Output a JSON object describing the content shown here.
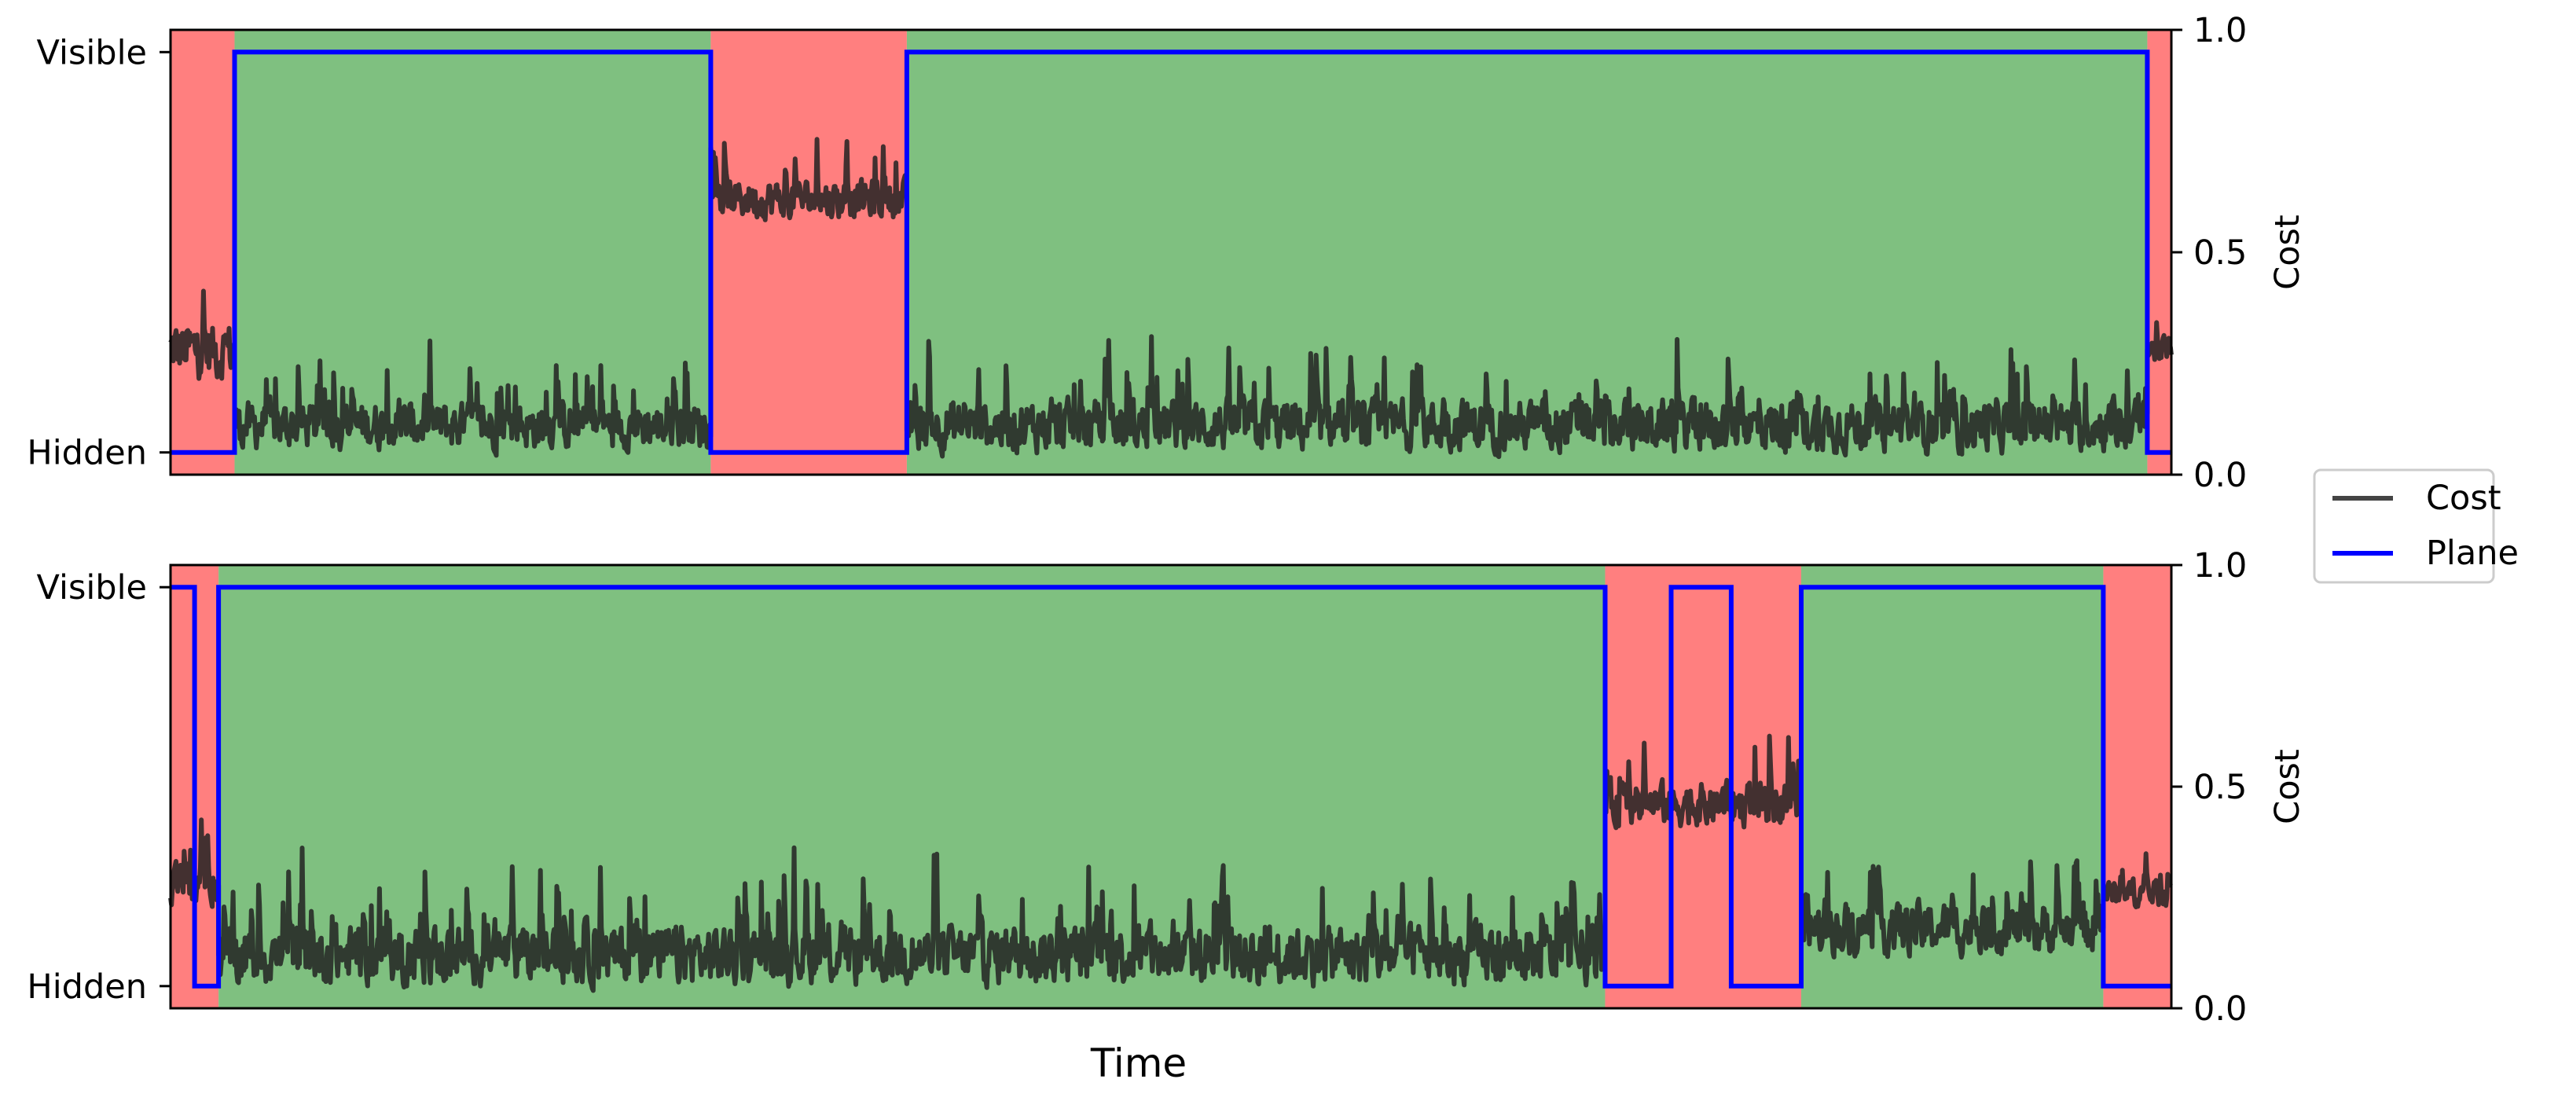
{
  "chart_data": [
    {
      "type": "line",
      "title": "",
      "xlabel": "",
      "ylabel_left_ticks": [
        "Hidden",
        "Visible"
      ],
      "ylabel_right": "Cost",
      "xlim": [
        0,
        1000
      ],
      "ylim": [
        0,
        1
      ],
      "y_right_ticks": [
        "0.0",
        "0.5",
        "1.0"
      ],
      "grid": false,
      "region_colors": {
        "visible": "#7fc080",
        "hidden": "#ff7f7f"
      },
      "regions": [
        {
          "state": "hidden",
          "x": [
            0,
            32
          ]
        },
        {
          "state": "visible",
          "x": [
            32,
            270
          ]
        },
        {
          "state": "hidden",
          "x": [
            270,
            368
          ]
        },
        {
          "state": "visible",
          "x": [
            368,
            988
          ]
        },
        {
          "state": "hidden",
          "x": [
            988,
            1000
          ]
        }
      ],
      "series": [
        {
          "name": "Plane",
          "color": "#0000ff",
          "kind": "step",
          "x": [
            0,
            32,
            32,
            270,
            270,
            368,
            368,
            988,
            988,
            1000
          ],
          "values": [
            0.05,
            0.05,
            0.95,
            0.95,
            0.05,
            0.05,
            0.95,
            0.95,
            0.05,
            0.05
          ]
        },
        {
          "name": "Cost",
          "color": "#222222",
          "kind": "noise",
          "segment_levels": [
            {
              "x": [
                0,
                32
              ],
              "base": 0.28,
              "amp": 0.3
            },
            {
              "x": [
                32,
                270
              ],
              "base": 0.11,
              "amp": 0.24
            },
            {
              "x": [
                270,
                368
              ],
              "base": 0.62,
              "amp": 0.2
            },
            {
              "x": [
                368,
                988
              ],
              "base": 0.11,
              "amp": 0.26
            },
            {
              "x": [
                988,
                1000
              ],
              "base": 0.28,
              "amp": 0.14
            }
          ]
        }
      ]
    },
    {
      "type": "line",
      "title": "",
      "xlabel": "Time",
      "ylabel_left_ticks": [
        "Hidden",
        "Visible"
      ],
      "ylabel_right": "Cost",
      "xlim": [
        0,
        1000
      ],
      "ylim": [
        0,
        1
      ],
      "y_right_ticks": [
        "0.0",
        "0.5",
        "1.0"
      ],
      "grid": false,
      "region_colors": {
        "visible": "#7fc080",
        "hidden": "#ff7f7f"
      },
      "regions": [
        {
          "state": "hidden",
          "x": [
            0,
            24
          ]
        },
        {
          "state": "visible",
          "x": [
            24,
            717
          ]
        },
        {
          "state": "hidden",
          "x": [
            717,
            815
          ]
        },
        {
          "state": "visible",
          "x": [
            815,
            966
          ]
        },
        {
          "state": "hidden",
          "x": [
            966,
            1000
          ]
        }
      ],
      "series": [
        {
          "name": "Plane",
          "color": "#0000ff",
          "kind": "step",
          "x": [
            0,
            12,
            12,
            24,
            24,
            717,
            717,
            750,
            750,
            780,
            780,
            815,
            815,
            966,
            966,
            1000
          ],
          "values": [
            0.95,
            0.95,
            0.05,
            0.05,
            0.95,
            0.95,
            0.05,
            0.05,
            0.95,
            0.95,
            0.05,
            0.05,
            0.95,
            0.95,
            0.05,
            0.05
          ]
        },
        {
          "name": "Cost",
          "color": "#222222",
          "kind": "noise",
          "segment_levels": [
            {
              "x": [
                0,
                24
              ],
              "base": 0.28,
              "amp": 0.22
            },
            {
              "x": [
                24,
                717
              ],
              "base": 0.12,
              "amp": 0.3
            },
            {
              "x": [
                717,
                815
              ],
              "base": 0.46,
              "amp": 0.22
            },
            {
              "x": [
                815,
                966
              ],
              "base": 0.18,
              "amp": 0.26
            },
            {
              "x": [
                966,
                1000
              ],
              "base": 0.26,
              "amp": 0.14
            }
          ]
        }
      ]
    }
  ],
  "legend": {
    "placement": "right-center",
    "entries": [
      {
        "label": "Cost",
        "color": "#444444"
      },
      {
        "label": "Plane",
        "color": "#0000ff"
      }
    ]
  }
}
